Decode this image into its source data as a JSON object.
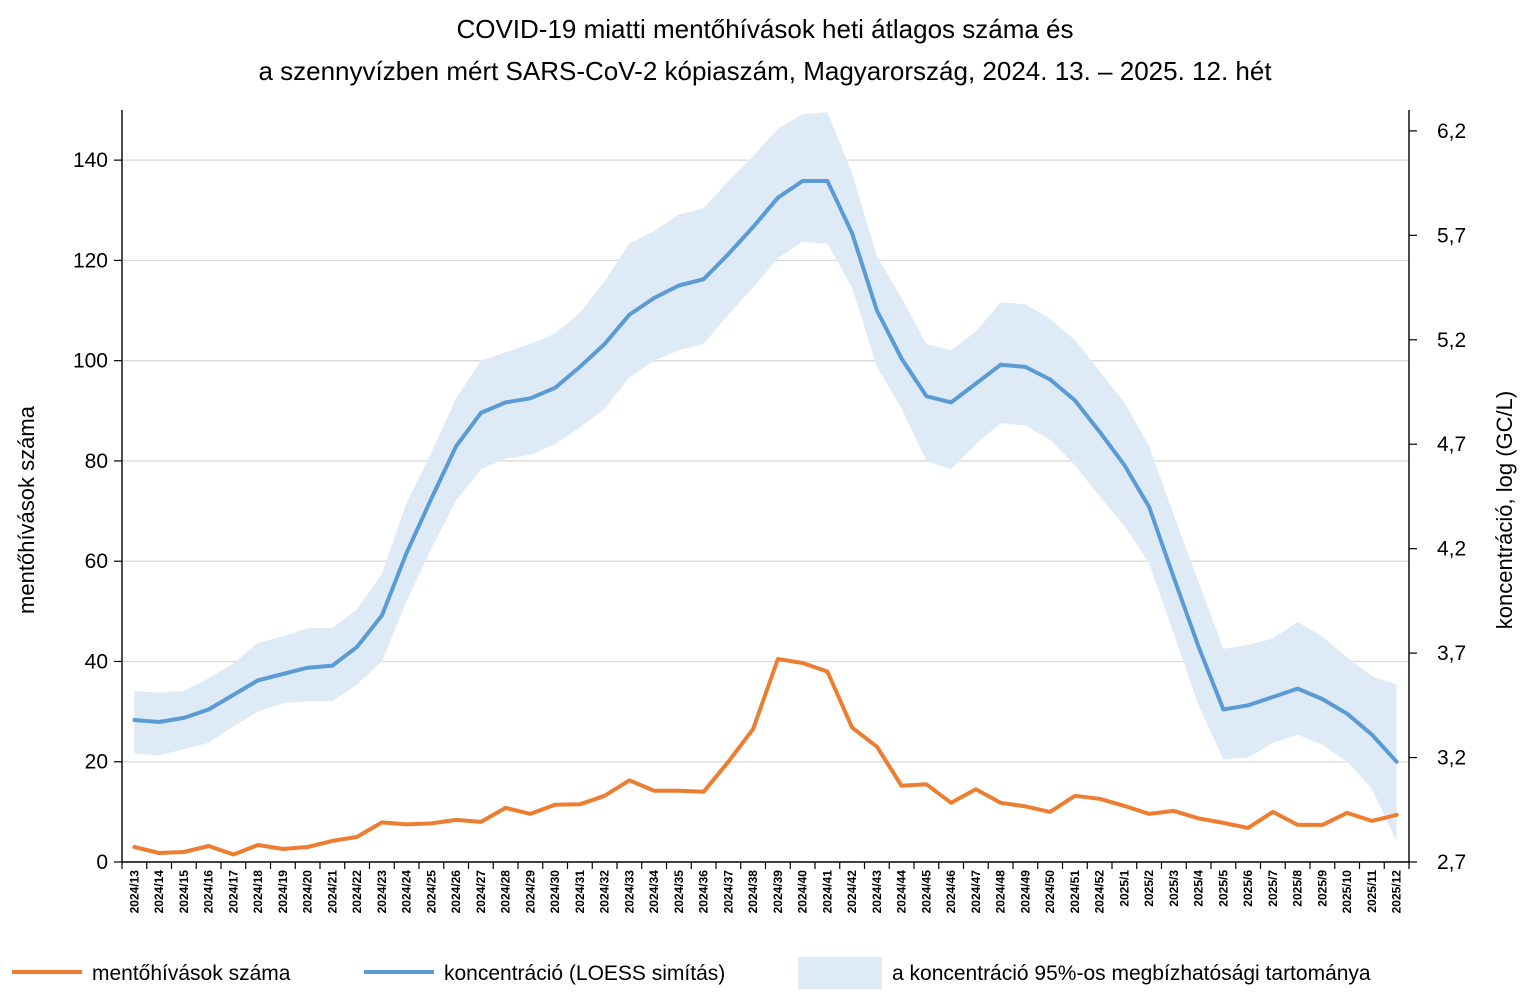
{
  "chart_data": {
    "type": "line",
    "title_lines": [
      "COVID-19 miatti mentőhívások heti átlagos száma és",
      "a szennyvízben mért SARS-CoV-2 kópiaszám, Magyarország, 2024. 13. – 2025. 12. hét"
    ],
    "ylabel_left": "mentőhívások száma",
    "ylabel_right": "koncentráció, log (GC/L)",
    "ylim_left": [
      0,
      150
    ],
    "yticks_left": [
      0,
      20,
      40,
      60,
      80,
      100,
      120,
      140
    ],
    "ylim_right": [
      2.7,
      6.3
    ],
    "yticks_right": [
      "2,7",
      "3,2",
      "3,7",
      "4,2",
      "4,7",
      "5,2",
      "5,7",
      "6,2"
    ],
    "grid": "horizontal",
    "legend_position": "bottom",
    "categories": [
      "2024/13",
      "2024/14",
      "2024/15",
      "2024/16",
      "2024/17",
      "2024/18",
      "2024/19",
      "2024/20",
      "2024/21",
      "2024/22",
      "2024/23",
      "2024/24",
      "2024/25",
      "2024/26",
      "2024/27",
      "2024/28",
      "2024/29",
      "2024/30",
      "2024/31",
      "2024/32",
      "2024/33",
      "2024/34",
      "2024/35",
      "2024/36",
      "2024/37",
      "2024/38",
      "2024/39",
      "2024/40",
      "2024/41",
      "2024/42",
      "2024/43",
      "2024/44",
      "2024/45",
      "2024/46",
      "2024/47",
      "2024/48",
      "2024/49",
      "2024/50",
      "2024/51",
      "2024/52",
      "2025/1",
      "2025/2",
      "2025/3",
      "2025/4",
      "2025/5",
      "2025/6",
      "2025/7",
      "2025/8",
      "2025/9",
      "2025/10",
      "2025/11",
      "2025/12"
    ],
    "series": [
      {
        "name": "mentőhívások száma",
        "axis": "left",
        "color": "#ED7D31",
        "values": [
          3.0,
          1.8,
          2.0,
          3.2,
          1.5,
          3.4,
          2.6,
          3.0,
          4.2,
          5.0,
          7.9,
          7.5,
          7.7,
          8.4,
          8.0,
          10.8,
          9.6,
          11.4,
          11.5,
          13.2,
          16.3,
          14.2,
          14.2,
          14.0,
          20.0,
          26.5,
          40.5,
          39.7,
          38.0,
          26.8,
          23.0,
          15.2,
          15.5,
          11.8,
          14.5,
          11.8,
          11.1,
          10.0,
          13.2,
          12.6,
          11.2,
          9.6,
          10.2,
          8.7,
          7.8,
          6.8,
          10.0,
          7.4,
          7.4,
          9.8,
          8.2,
          9.4
        ]
      },
      {
        "name": "koncentráció (LOESS simítás)",
        "axis": "right",
        "color": "#5B9BD5",
        "values": [
          3.38,
          3.37,
          3.39,
          3.43,
          3.5,
          3.57,
          3.6,
          3.63,
          3.64,
          3.73,
          3.88,
          4.18,
          4.44,
          4.69,
          4.85,
          4.9,
          4.92,
          4.97,
          5.07,
          5.18,
          5.32,
          5.4,
          5.46,
          5.49,
          5.61,
          5.74,
          5.88,
          5.96,
          5.96,
          5.71,
          5.34,
          5.11,
          4.93,
          4.9,
          4.99,
          5.08,
          5.07,
          5.01,
          4.91,
          4.76,
          4.6,
          4.4,
          4.06,
          3.73,
          3.43,
          3.45,
          3.49,
          3.53,
          3.48,
          3.41,
          3.31,
          3.18
        ]
      },
      {
        "name": "a koncentráció 95%-os megbízhatósági tartománya",
        "axis": "right",
        "color": "#DEEBF7",
        "lower": [
          3.22,
          3.21,
          3.24,
          3.27,
          3.35,
          3.42,
          3.46,
          3.47,
          3.47,
          3.55,
          3.66,
          3.95,
          4.2,
          4.43,
          4.58,
          4.63,
          4.65,
          4.7,
          4.78,
          4.87,
          5.02,
          5.1,
          5.15,
          5.18,
          5.32,
          5.45,
          5.59,
          5.67,
          5.66,
          5.45,
          5.07,
          4.87,
          4.62,
          4.58,
          4.7,
          4.8,
          4.79,
          4.72,
          4.6,
          4.45,
          4.31,
          4.13,
          3.79,
          3.45,
          3.19,
          3.2,
          3.27,
          3.31,
          3.26,
          3.18,
          3.05,
          2.8
        ],
        "upper": [
          3.52,
          3.51,
          3.52,
          3.58,
          3.65,
          3.75,
          3.78,
          3.82,
          3.82,
          3.91,
          4.08,
          4.42,
          4.66,
          4.92,
          5.1,
          5.14,
          5.18,
          5.23,
          5.33,
          5.48,
          5.66,
          5.72,
          5.8,
          5.83,
          5.96,
          6.08,
          6.21,
          6.28,
          6.29,
          6.0,
          5.6,
          5.4,
          5.18,
          5.15,
          5.24,
          5.38,
          5.37,
          5.3,
          5.2,
          5.05,
          4.9,
          4.69,
          4.36,
          4.04,
          3.72,
          3.74,
          3.77,
          3.85,
          3.78,
          3.68,
          3.59,
          3.55
        ]
      }
    ]
  }
}
